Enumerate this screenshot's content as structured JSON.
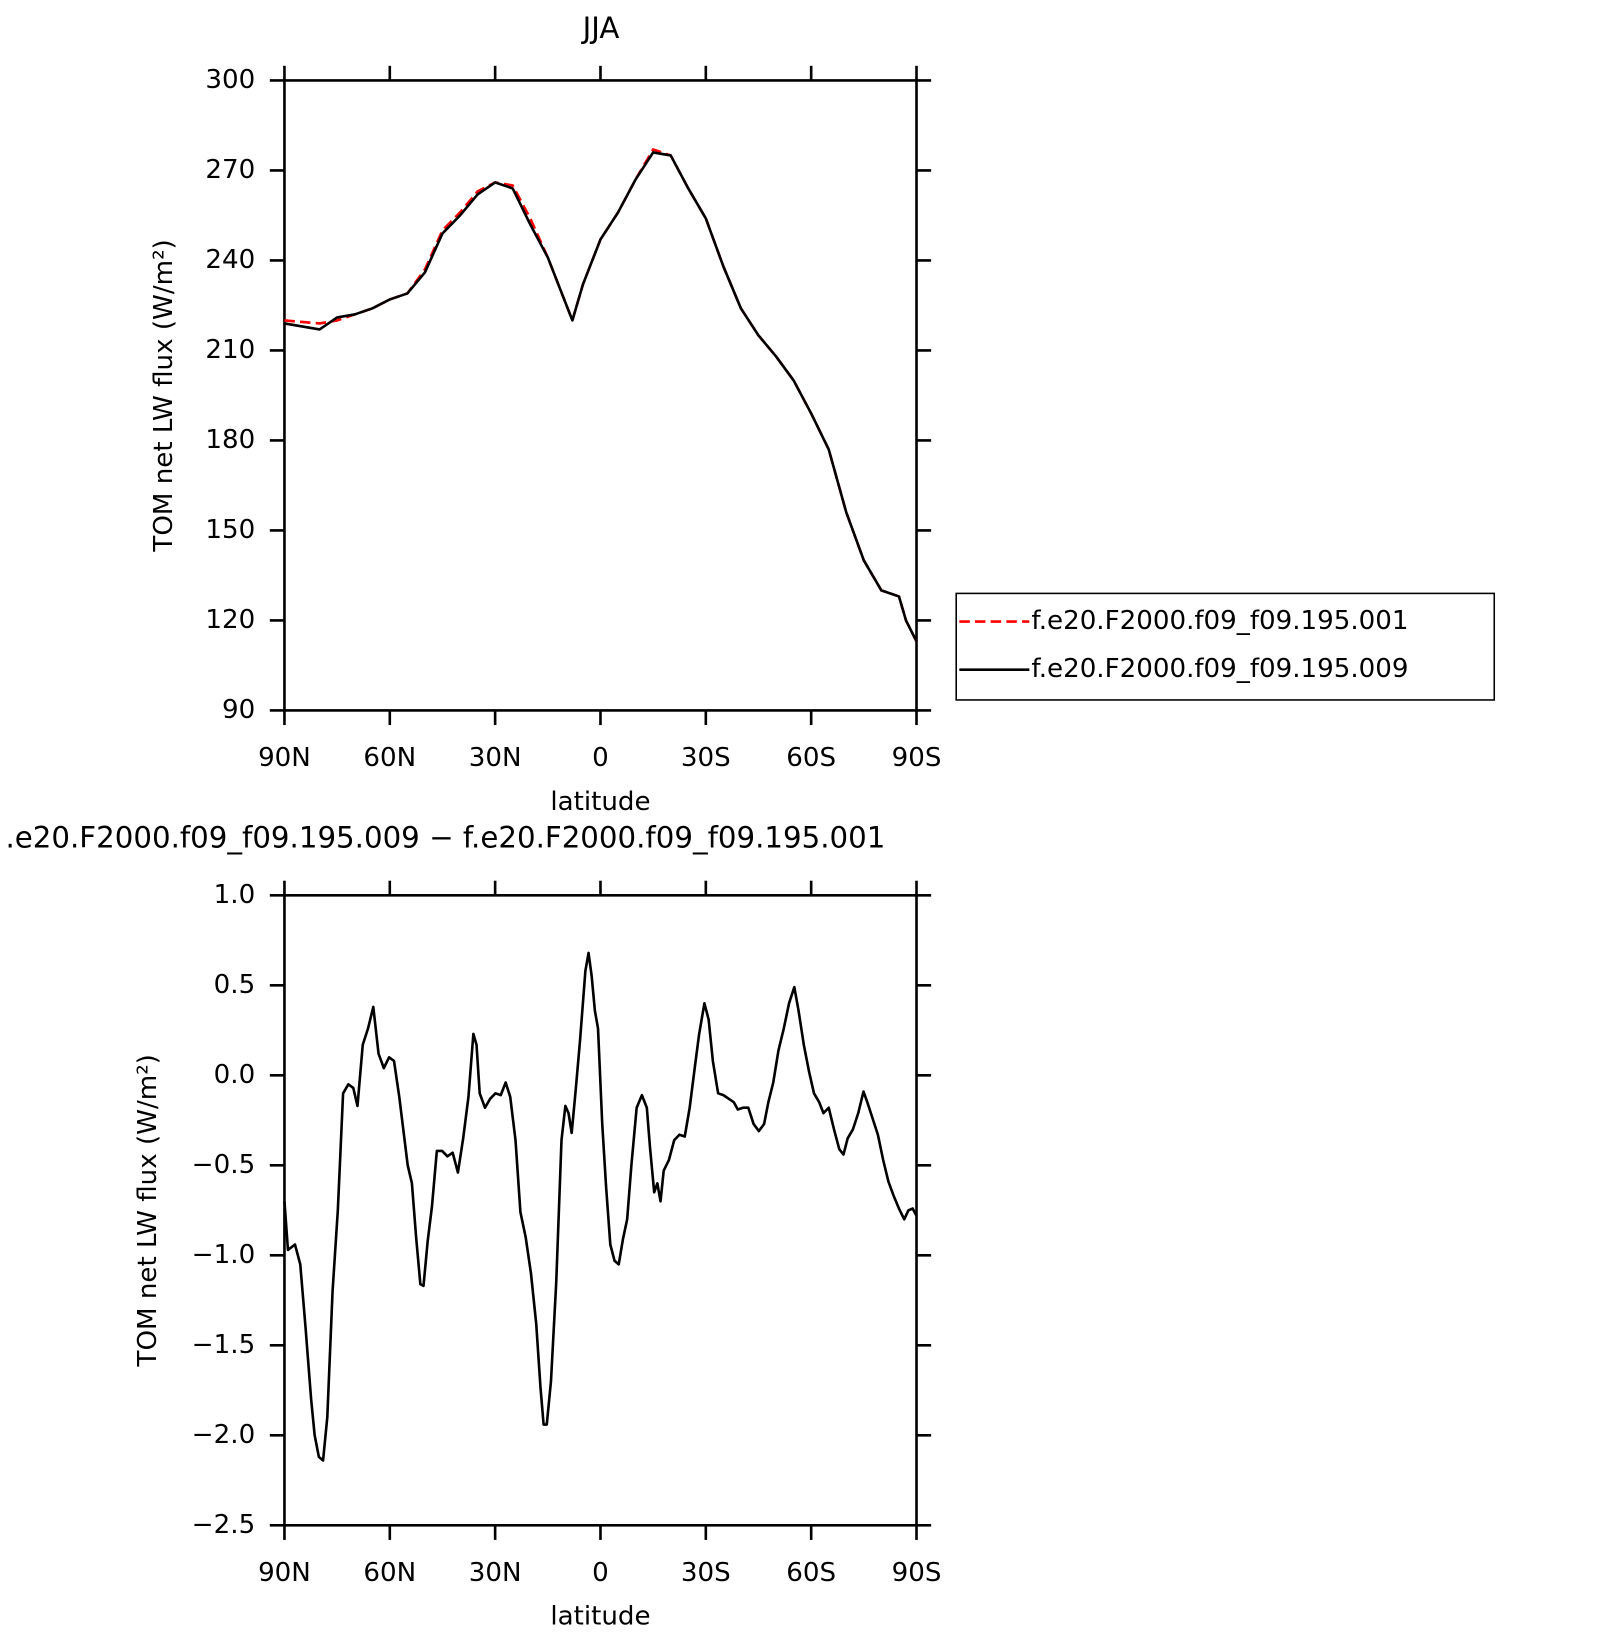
{
  "chart_data": [
    {
      "type": "line",
      "title": "JJA",
      "xlabel": "latitude",
      "ylabel": "TOM net LW flux (W/m²)",
      "x": [
        90,
        85,
        80,
        75,
        70,
        65,
        60,
        55,
        50,
        45,
        40,
        35,
        30,
        25,
        20,
        15,
        10,
        8,
        5,
        0,
        -5,
        -10,
        -15,
        -20,
        -25,
        -30,
        -35,
        -40,
        -45,
        -50,
        -55,
        -60,
        -65,
        -70,
        -75,
        -80,
        -85,
        -87,
        -90
      ],
      "series": [
        {
          "name": "f.e20.F2000.f09_f09.195.001",
          "color": "#ff0000",
          "dash": true,
          "values": [
            220,
            219.5,
            219,
            220,
            222,
            224,
            227,
            229,
            237,
            250,
            256,
            263,
            266,
            265,
            254,
            241,
            226,
            220,
            232,
            247,
            256,
            267,
            277,
            275,
            264,
            254,
            238,
            224,
            215,
            208,
            200,
            189,
            177,
            156,
            140,
            130,
            128,
            120,
            113
          ]
        },
        {
          "name": "f.e20.F2000.f09_f09.195.009",
          "color": "#000000",
          "dash": false,
          "values": [
            219,
            218,
            217,
            221,
            222,
            224,
            227,
            229,
            236,
            249,
            255,
            262,
            266,
            264,
            252,
            241,
            226,
            220,
            232,
            247,
            256,
            267,
            276,
            275,
            264,
            254,
            238,
            224,
            215,
            208,
            200,
            189,
            177,
            156,
            140,
            130,
            128,
            120,
            113
          ]
        }
      ],
      "xlim": [
        90,
        -90
      ],
      "xticks": [
        {
          "value": 90,
          "label": "90N"
        },
        {
          "value": 60,
          "label": "60N"
        },
        {
          "value": 30,
          "label": "30N"
        },
        0,
        {
          "value": -30,
          "label": "30S"
        },
        {
          "value": -60,
          "label": "60S"
        },
        {
          "value": -90,
          "label": "90S"
        }
      ],
      "ylim": [
        90,
        300
      ],
      "yticks": [
        90,
        120,
        150,
        180,
        210,
        240,
        270,
        300
      ],
      "legend": "right"
    },
    {
      "type": "line",
      "title": ".e20.F2000.f09_f09.195.009 − f.e20.F2000.f09_f09.195.001",
      "xlabel": "latitude",
      "ylabel": "TOM net LW flux (W/m²)",
      "x": [
        90,
        89,
        87,
        85.5,
        84,
        82.4,
        81.4,
        80.2,
        79,
        77.8,
        76.3,
        74.8,
        73.3,
        71.8,
        70.4,
        69.2,
        67.7,
        66.2,
        64.7,
        63.2,
        61.7,
        60.2,
        58.8,
        57.3,
        54.9,
        53.7,
        52.5,
        51.3,
        50.4,
        49.2,
        48,
        46.6,
        45.1,
        43.6,
        42.1,
        40.6,
        39.1,
        37.6,
        36.2,
        35.3,
        34.4,
        32.9,
        31.4,
        29.9,
        28.4,
        27,
        25.7,
        24.2,
        22.8,
        21.3,
        19.8,
        18.3,
        17.1,
        16.2,
        15.3,
        14.1,
        12.6,
        11.1,
        10,
        9.1,
        8.2,
        7,
        5.8,
        4.3,
        3.4,
        2.5,
        1.6,
        0.7,
        -0.5,
        -1.6,
        -2.8,
        -4,
        -5.2,
        -6.4,
        -7.6,
        -8.8,
        -10.3,
        -11.8,
        -13.2,
        -14.1,
        -15.3,
        -16.2,
        -17.1,
        -18,
        -19.5,
        -21,
        -22.5,
        -24,
        -25.4,
        -26.9,
        -28.1,
        -29.6,
        -30.8,
        -32,
        -33.5,
        -35,
        -36.5,
        -38,
        -39.1,
        -40.6,
        -42.1,
        -43.6,
        -45.1,
        -46.6,
        -47.8,
        -49.2,
        -50.7,
        -52.2,
        -53.7,
        -55.2,
        -56.4,
        -57.9,
        -59.4,
        -60.8,
        -62.3,
        -63.5,
        -65,
        -66.5,
        -68,
        -69.2,
        -70.4,
        -71.9,
        -73.4,
        -74.9,
        -76,
        -77.5,
        -79,
        -80.5,
        -82,
        -83.5,
        -85,
        -86.5,
        -87.7,
        -88.9,
        -90
      ],
      "series": [
        {
          "color": "#000000",
          "dash": false,
          "values": [
            -0.7,
            -0.97,
            -0.94,
            -1.05,
            -1.4,
            -1.8,
            -2.0,
            -2.12,
            -2.14,
            -1.9,
            -1.2,
            -0.75,
            -0.1,
            -0.05,
            -0.07,
            -0.17,
            0.17,
            0.26,
            0.38,
            0.12,
            0.04,
            0.1,
            0.08,
            -0.12,
            -0.5,
            -0.6,
            -0.9,
            -1.16,
            -1.17,
            -0.92,
            -0.73,
            -0.42,
            -0.42,
            -0.45,
            -0.43,
            -0.54,
            -0.35,
            -0.12,
            0.23,
            0.17,
            -0.1,
            -0.18,
            -0.13,
            -0.1,
            -0.11,
            -0.04,
            -0.12,
            -0.36,
            -0.76,
            -0.9,
            -1.1,
            -1.38,
            -1.73,
            -1.94,
            -1.94,
            -1.7,
            -1.15,
            -0.36,
            -0.17,
            -0.21,
            -0.32,
            -0.07,
            0.2,
            0.58,
            0.68,
            0.55,
            0.36,
            0.26,
            -0.27,
            -0.62,
            -0.94,
            -1.03,
            -1.05,
            -0.91,
            -0.8,
            -0.5,
            -0.18,
            -0.11,
            -0.18,
            -0.4,
            -0.65,
            -0.6,
            -0.7,
            -0.53,
            -0.47,
            -0.36,
            -0.33,
            -0.34,
            -0.18,
            0.05,
            0.23,
            0.4,
            0.31,
            0.08,
            -0.1,
            -0.11,
            -0.13,
            -0.15,
            -0.19,
            -0.18,
            -0.18,
            -0.27,
            -0.31,
            -0.27,
            -0.15,
            -0.04,
            0.14,
            0.26,
            0.4,
            0.49,
            0.36,
            0.17,
            0.02,
            -0.1,
            -0.15,
            -0.21,
            -0.18,
            -0.3,
            -0.41,
            -0.44,
            -0.35,
            -0.3,
            -0.21,
            -0.09,
            -0.15,
            -0.24,
            -0.33,
            -0.47,
            -0.59,
            -0.67,
            -0.74,
            -0.8,
            -0.75,
            -0.74,
            -0.78
          ]
        }
      ],
      "xlim": [
        90,
        -90
      ],
      "xticks": [
        {
          "value": 90,
          "label": "90N"
        },
        {
          "value": 60,
          "label": "60N"
        },
        {
          "value": 30,
          "label": "30N"
        },
        0,
        {
          "value": -30,
          "label": "30S"
        },
        {
          "value": -60,
          "label": "60S"
        },
        {
          "value": -90,
          "label": "90S"
        }
      ],
      "ylim": [
        -2.5,
        1.0
      ],
      "yticks": [
        {
          "value": -2.5,
          "label": "−2.5"
        },
        {
          "value": -2.0,
          "label": "−2.0"
        },
        {
          "value": -1.5,
          "label": "−1.5"
        },
        {
          "value": -1.0,
          "label": "−1.0"
        },
        {
          "value": -0.5,
          "label": "−0.5"
        },
        {
          "value": 0.0,
          "label": "0.0"
        },
        {
          "value": 0.5,
          "label": "0.5"
        },
        {
          "value": 1.0,
          "label": "1.0"
        }
      ]
    }
  ]
}
